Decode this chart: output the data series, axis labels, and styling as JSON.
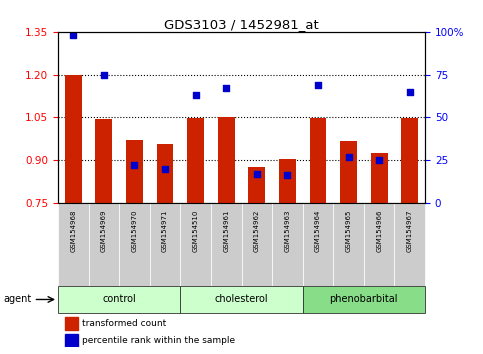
{
  "title": "GDS3103 / 1452981_at",
  "samples": [
    "GSM154968",
    "GSM154969",
    "GSM154970",
    "GSM154971",
    "GSM154510",
    "GSM154961",
    "GSM154962",
    "GSM154963",
    "GSM154964",
    "GSM154965",
    "GSM154966",
    "GSM154967"
  ],
  "groups": [
    {
      "label": "control",
      "color": "#ccffcc",
      "indices": [
        0,
        1,
        2,
        3
      ]
    },
    {
      "label": "cholesterol",
      "color": "#ccffcc",
      "indices": [
        4,
        5,
        6,
        7
      ]
    },
    {
      "label": "phenobarbital",
      "color": "#88dd88",
      "indices": [
        8,
        9,
        10,
        11
      ]
    }
  ],
  "bar_values": [
    1.2,
    1.045,
    0.97,
    0.955,
    1.048,
    1.05,
    0.875,
    0.905,
    1.048,
    0.965,
    0.925,
    1.047
  ],
  "bar_bottom": 0.75,
  "percentile_values": [
    98,
    75,
    22,
    20,
    63,
    67,
    17,
    16,
    69,
    27,
    25,
    65
  ],
  "ylim_left": [
    0.75,
    1.35
  ],
  "ylim_right": [
    0,
    100
  ],
  "yticks_left": [
    0.75,
    0.9,
    1.05,
    1.2,
    1.35
  ],
  "yticks_right": [
    0,
    25,
    50,
    75,
    100
  ],
  "bar_color": "#cc2200",
  "dot_color": "#0000cc",
  "legend_bar": "transformed count",
  "legend_dot": "percentile rank within the sample",
  "figsize": [
    4.83,
    3.54
  ],
  "dpi": 100
}
